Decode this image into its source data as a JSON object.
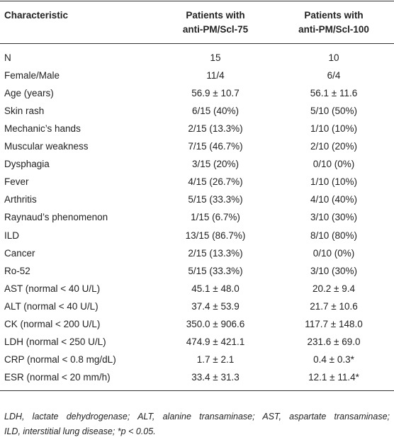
{
  "table": {
    "header": [
      [
        "Characteristic"
      ],
      [
        "Patients with",
        "anti-PM/Scl-75"
      ],
      [
        "Patients with",
        "anti-PM/Scl-100"
      ]
    ],
    "rows": [
      [
        "N",
        "15",
        "10"
      ],
      [
        "Female/Male",
        "11/4",
        "6/4"
      ],
      [
        "Age (years)",
        "56.9 ± 10.7",
        "56.1 ± 11.6"
      ],
      [
        "Skin rash",
        "6/15 (40%)",
        "5/10 (50%)"
      ],
      [
        "Mechanic’s hands",
        "2/15 (13.3%)",
        "1/10 (10%)"
      ],
      [
        "Muscular weakness",
        "7/15 (46.7%)",
        "2/10 (20%)"
      ],
      [
        "Dysphagia",
        "3/15 (20%)",
        "0/10 (0%)"
      ],
      [
        "Fever",
        "4/15 (26.7%)",
        "1/10 (10%)"
      ],
      [
        "Arthritis",
        "5/15 (33.3%)",
        "4/10 (40%)"
      ],
      [
        "Raynaud’s phenomenon",
        "1/15 (6.7%)",
        "3/10 (30%)"
      ],
      [
        "ILD",
        "13/15 (86.7%)",
        "8/10 (80%)"
      ],
      [
        "Cancer",
        "2/15 (13.3%)",
        "0/10 (0%)"
      ],
      [
        "Ro-52",
        "5/15 (33.3%)",
        "3/10 (30%)"
      ],
      [
        "AST (normal < 40 U/L)",
        "45.1 ± 48.0",
        "20.2 ± 9.4"
      ],
      [
        "ALT (normal < 40 U/L)",
        "37.4 ± 53.9",
        "21.7 ± 10.6"
      ],
      [
        "CK (normal < 200 U/L)",
        "350.0 ± 906.6",
        "117.7 ± 148.0"
      ],
      [
        "LDH (normal < 250 U/L)",
        "474.9 ± 421.1",
        "231.6 ± 69.0"
      ],
      [
        "CRP (normal < 0.8 mg/dL)",
        "1.7 ± 2.1",
        "0.4 ± 0.3*"
      ],
      [
        "ESR (normal < 20 mm/h)",
        "33.4 ± 31.3",
        "12.1 ± 11.4*"
      ]
    ]
  },
  "footnote": [
    "LDH, lactate dehydrogenase; ALT, alanine transaminase; AST, aspartate transaminase;",
    "ILD, interstitial lung disease; *p < 0.05."
  ]
}
